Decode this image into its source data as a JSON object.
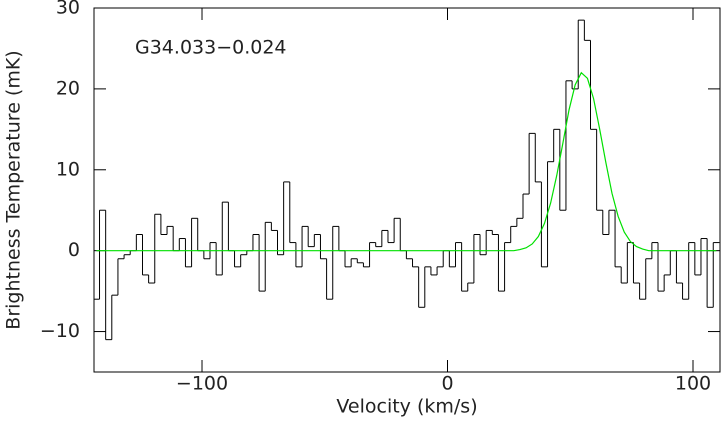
{
  "chart_data": {
    "type": "step",
    "title": "G34.033−0.024",
    "xlabel": "Velocity (km/s)",
    "ylabel": "Brightness Temperature (mK)",
    "xlim": [
      -144,
      111
    ],
    "ylim": [
      -15,
      30
    ],
    "xticks": [
      {
        "value": -100,
        "label": "−100"
      },
      0,
      100
    ],
    "yticks": [
      {
        "value": -10,
        "label": "−10"
      },
      0,
      10,
      20,
      30
    ],
    "x": [
      -143,
      -140.5,
      -138,
      -135.5,
      -133,
      -130.5,
      -128,
      -125.5,
      -123,
      -120.5,
      -118,
      -115.5,
      -113,
      -110.5,
      -108,
      -105.5,
      -103,
      -100.5,
      -98,
      -95.5,
      -93,
      -90.5,
      -88,
      -85.5,
      -83,
      -80.5,
      -78,
      -75.5,
      -73,
      -70.5,
      -68,
      -65.5,
      -63,
      -60.5,
      -58,
      -55.5,
      -53,
      -50.5,
      -48,
      -45.5,
      -43,
      -40.5,
      -38,
      -35.5,
      -33,
      -30.5,
      -28,
      -25.5,
      -23,
      -20.5,
      -18,
      -15.5,
      -13,
      -10.5,
      -8,
      -5.5,
      -3,
      -0.5,
      2,
      4.5,
      7,
      9.5,
      12,
      14.5,
      17,
      19.5,
      22,
      24.5,
      27,
      29.5,
      32,
      34.5,
      37,
      39.5,
      42,
      44.5,
      47,
      49.5,
      52,
      54.5,
      57,
      59.5,
      62,
      64.5,
      67,
      69.5,
      72,
      74.5,
      77,
      79.5,
      82,
      84.5,
      87,
      89.5,
      92,
      94.5,
      97,
      99.5,
      102,
      104.5,
      107,
      109.5
    ],
    "series": [
      {
        "color": "#000000",
        "values": [
          -6,
          5,
          -11,
          -5.5,
          -1,
          -0.5,
          0,
          2,
          -3,
          -4,
          4.5,
          2,
          3,
          0,
          1.5,
          -2,
          4,
          0,
          -1,
          1,
          -3,
          6,
          0,
          -2,
          -0.5,
          0,
          2,
          -5,
          3.5,
          2.5,
          -0.5,
          8.5,
          1,
          -2,
          3,
          0.5,
          2,
          -1,
          -6,
          3,
          0,
          -2,
          -1,
          -1.5,
          -2,
          1,
          0.5,
          2.5,
          1,
          4,
          0,
          -1,
          -2,
          -7,
          -2,
          -3,
          -2,
          0,
          -2,
          1,
          -5,
          -4,
          2,
          -0.5,
          2.5,
          2,
          -5,
          1,
          3,
          4,
          7,
          14.5,
          8.5,
          -2,
          11,
          15,
          5,
          21,
          20,
          28.5,
          26,
          15,
          5,
          2,
          5,
          -2,
          -4,
          1,
          -4,
          -6,
          -1,
          1,
          -5,
          -3,
          0,
          -4,
          -6,
          1,
          -3,
          1.5,
          -7,
          1
        ]
      },
      {
        "color": "#00e000",
        "values": [
          0,
          0,
          0,
          0,
          0,
          0,
          0,
          0,
          0,
          0,
          0,
          0,
          0,
          0,
          0,
          0,
          0,
          0,
          0,
          0,
          0,
          0,
          0,
          0,
          0,
          0,
          0,
          0,
          0,
          0,
          0,
          0,
          0,
          0,
          0,
          0,
          0,
          0,
          0,
          0,
          0,
          0,
          0,
          0,
          0,
          0,
          0,
          0,
          0,
          0,
          0,
          0,
          0,
          0,
          0,
          0,
          0,
          0,
          0,
          0,
          0,
          0,
          0,
          0,
          0,
          0,
          0,
          0,
          0,
          0.14,
          0.35,
          0.83,
          1.75,
          3.37,
          5.88,
          9.3,
          13.3,
          17.4,
          20.5,
          22,
          21.3,
          18.8,
          15,
          10.9,
          7.1,
          4.25,
          2.3,
          1.13,
          0.5,
          0.2,
          0,
          0,
          0,
          0,
          0,
          0,
          0,
          0,
          0,
          0,
          0,
          0
        ]
      }
    ]
  }
}
